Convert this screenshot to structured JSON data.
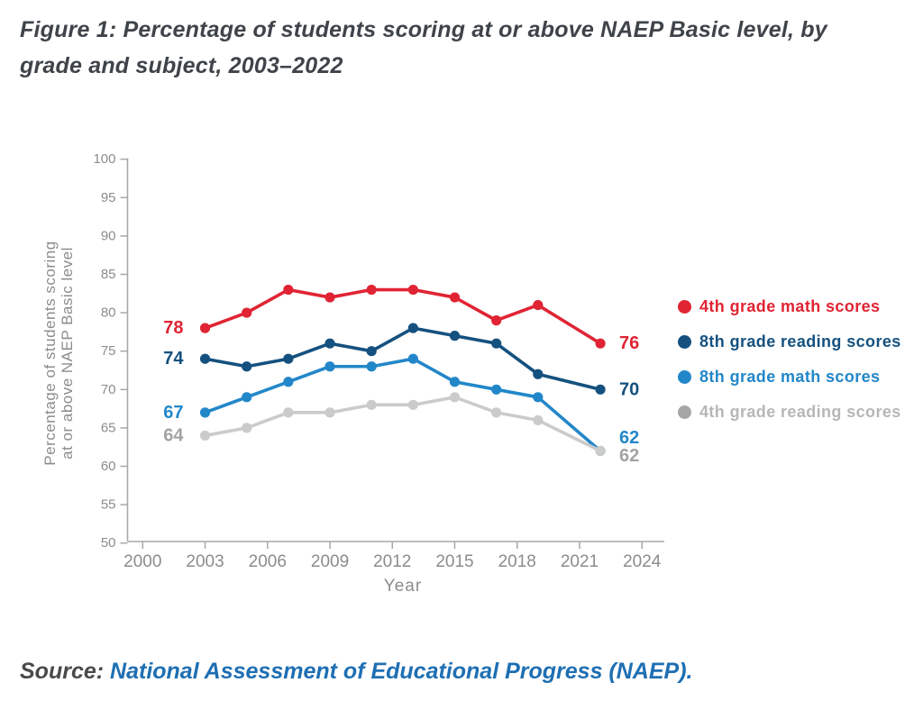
{
  "figure_title": "Figure 1: Percentage of students scoring at or above NAEP Basic level, by grade and subject, 2003–2022",
  "source": {
    "prefix": "Source: ",
    "text": "National Assessment of Educational Progress (NAEP).",
    "prefix_color": "#4a4a4c",
    "link_color": "#1e6fb3"
  },
  "chart_data": {
    "type": "line",
    "title": "Figure 1: Percentage of students scoring at or above NAEP Basic level, by grade and subject, 2003–2022",
    "xlabel": "Year",
    "ylabel": "Percentage of students scoring at or above NAEP Basic level",
    "ylabel_lines": [
      "Percentage of students scoring",
      "at or above NAEP Basic level"
    ],
    "xlim": [
      2000,
      2024
    ],
    "ylim": [
      50,
      100
    ],
    "x_ticks": [
      2000,
      2003,
      2006,
      2009,
      2012,
      2015,
      2018,
      2021,
      2024
    ],
    "y_ticks": [
      50,
      55,
      60,
      65,
      70,
      75,
      80,
      85,
      90,
      95,
      100
    ],
    "grid": false,
    "legend_position": "right",
    "axis_color": "#a8a8a8",
    "tick_text_color": "#8c8c8c",
    "x": [
      2003,
      2005,
      2007,
      2009,
      2011,
      2013,
      2015,
      2017,
      2019,
      2022
    ],
    "series": [
      {
        "name": "4th grade math scores",
        "color": "#e02433",
        "values": [
          78,
          80,
          83,
          82,
          83,
          83,
          82,
          79,
          81,
          76
        ],
        "start_label": "78",
        "end_label": "76"
      },
      {
        "name": "8th grade reading scores",
        "color": "#15517f",
        "values": [
          74,
          73,
          74,
          76,
          75,
          78,
          77,
          76,
          72,
          70
        ],
        "start_label": "74",
        "end_label": "70"
      },
      {
        "name": "8th grade math scores",
        "color": "#2287c9",
        "values": [
          67,
          69,
          71,
          73,
          73,
          74,
          71,
          70,
          69,
          62
        ],
        "start_label": "67",
        "end_label": "62",
        "end_dy": -14.5
      },
      {
        "name": "4th grade reading scores",
        "color": "#cbcbcb",
        "values": [
          64,
          65,
          67,
          67,
          68,
          68,
          69,
          67,
          66,
          62
        ],
        "start_label": "64",
        "end_label": "62",
        "end_dy": 5.5,
        "value_label_color": "#a3a3a3",
        "legend_dot_color": "#a6a6a6",
        "legend_text_color": "#b7b7b7"
      }
    ],
    "draw_order": [
      2,
      1,
      0,
      3
    ]
  }
}
